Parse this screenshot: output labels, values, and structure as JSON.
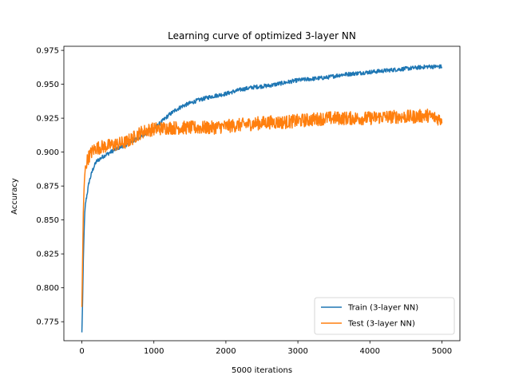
{
  "chart_data": {
    "type": "line",
    "title": "Learning curve of optimized 3-layer NN",
    "xlabel": "5000 iterations",
    "ylabel": "Accuracy",
    "xlim": [
      -250,
      5250
    ],
    "ylim": [
      0.761,
      0.978
    ],
    "xticks": [
      0,
      1000,
      2000,
      3000,
      4000,
      5000
    ],
    "xtick_labels": [
      "0",
      "1000",
      "2000",
      "3000",
      "4000",
      "5000"
    ],
    "yticks": [
      0.775,
      0.8,
      0.825,
      0.85,
      0.875,
      0.9,
      0.925,
      0.95,
      0.975
    ],
    "ytick_labels": [
      "0.775",
      "0.800",
      "0.825",
      "0.850",
      "0.875",
      "0.900",
      "0.925",
      "0.950",
      "0.975"
    ],
    "grid": false,
    "legend_position": "lower-right",
    "series": [
      {
        "name": "Train (3-layer NN)",
        "color": "#1f77b4",
        "x": [
          0,
          10,
          20,
          30,
          40,
          50,
          75,
          100,
          150,
          200,
          300,
          400,
          500,
          600,
          700,
          800,
          900,
          1000,
          1100,
          1200,
          1300,
          1400,
          1500,
          1600,
          1800,
          2000,
          2200,
          2400,
          2600,
          2800,
          3000,
          3200,
          3400,
          3600,
          3800,
          4000,
          4200,
          4400,
          4600,
          4800,
          5000
        ],
        "y": [
          0.767,
          0.79,
          0.82,
          0.84,
          0.855,
          0.862,
          0.87,
          0.878,
          0.887,
          0.893,
          0.897,
          0.9,
          0.903,
          0.905,
          0.908,
          0.911,
          0.914,
          0.917,
          0.922,
          0.927,
          0.931,
          0.934,
          0.936,
          0.938,
          0.941,
          0.943,
          0.946,
          0.948,
          0.949,
          0.951,
          0.953,
          0.954,
          0.955,
          0.957,
          0.958,
          0.959,
          0.96,
          0.961,
          0.962,
          0.963,
          0.963
        ],
        "noise": 0.0015
      },
      {
        "name": "Test (3-layer NN)",
        "color": "#ff7f0e",
        "x": [
          0,
          10,
          20,
          30,
          40,
          50,
          75,
          100,
          150,
          200,
          300,
          400,
          500,
          600,
          700,
          800,
          900,
          1000,
          1200,
          1400,
          1600,
          1800,
          2000,
          2200,
          2400,
          2600,
          2800,
          3000,
          3200,
          3400,
          3600,
          3800,
          4000,
          4200,
          4400,
          4600,
          4800,
          5000
        ],
        "y": [
          0.785,
          0.82,
          0.855,
          0.872,
          0.883,
          0.889,
          0.894,
          0.897,
          0.901,
          0.903,
          0.904,
          0.905,
          0.906,
          0.907,
          0.91,
          0.914,
          0.916,
          0.917,
          0.918,
          0.918,
          0.918,
          0.918,
          0.919,
          0.92,
          0.921,
          0.922,
          0.922,
          0.923,
          0.924,
          0.925,
          0.925,
          0.925,
          0.925,
          0.926,
          0.926,
          0.926,
          0.927,
          0.924
        ],
        "noise": 0.005
      }
    ]
  }
}
